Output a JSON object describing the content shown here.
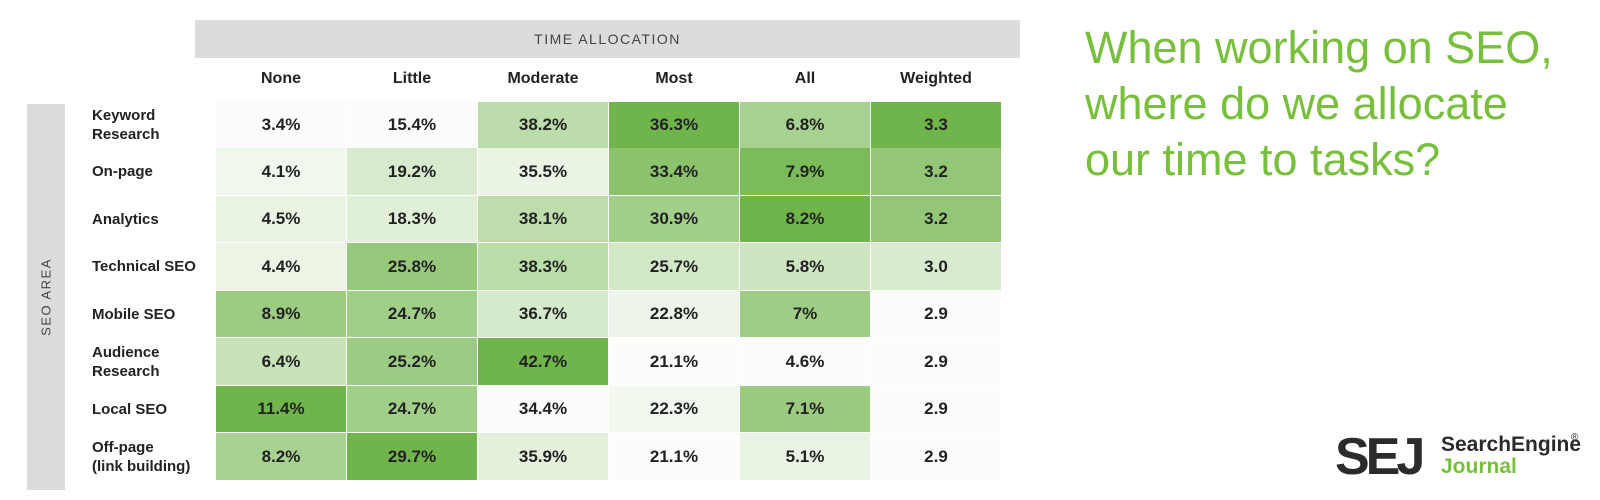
{
  "chart_data": {
    "type": "heatmap",
    "title": "When working on SEO, where do we allocate our time to tasks?",
    "column_axis_label": "TIME ALLOCATION",
    "row_axis_label": "SEO AREA",
    "columns": [
      "None",
      "Little",
      "Moderate",
      "Most",
      "All",
      "Weighted"
    ],
    "rows": [
      {
        "label": "Keyword\nResearch",
        "display": [
          "3.4%",
          "15.4%",
          "38.2%",
          "36.3%",
          "6.8%",
          "3.3"
        ],
        "values": [
          3.4,
          15.4,
          38.2,
          36.3,
          6.8,
          3.3
        ]
      },
      {
        "label": "On-page",
        "display": [
          "4.1%",
          "19.2%",
          "35.5%",
          "33.4%",
          "7.9%",
          "3.2"
        ],
        "values": [
          4.1,
          19.2,
          35.5,
          33.4,
          7.9,
          3.2
        ]
      },
      {
        "label": "Analytics",
        "display": [
          "4.5%",
          "18.3%",
          "38.1%",
          "30.9%",
          "8.2%",
          "3.2"
        ],
        "values": [
          4.5,
          18.3,
          38.1,
          30.9,
          8.2,
          3.2
        ]
      },
      {
        "label": "Technical SEO",
        "display": [
          "4.4%",
          "25.8%",
          "38.3%",
          "25.7%",
          "5.8%",
          "3.0"
        ],
        "values": [
          4.4,
          25.8,
          38.3,
          25.7,
          5.8,
          3.0
        ]
      },
      {
        "label": "Mobile SEO",
        "display": [
          "8.9%",
          "24.7%",
          "36.7%",
          "22.8%",
          "7%",
          "2.9"
        ],
        "values": [
          8.9,
          24.7,
          36.7,
          22.8,
          7,
          2.9
        ]
      },
      {
        "label": "Audience\nResearch",
        "display": [
          "6.4%",
          "25.2%",
          "42.7%",
          "21.1%",
          "4.6%",
          "2.9"
        ],
        "values": [
          6.4,
          25.2,
          42.7,
          21.1,
          4.6,
          2.9
        ]
      },
      {
        "label": "Local SEO",
        "display": [
          "11.4%",
          "24.7%",
          "34.4%",
          "22.3%",
          "7.1%",
          "2.9"
        ],
        "values": [
          11.4,
          24.7,
          34.4,
          22.3,
          7.1,
          2.9
        ]
      },
      {
        "label": "Off-page\n(link building)",
        "display": [
          "8.2%",
          "29.7%",
          "35.9%",
          "21.1%",
          "5.1%",
          "2.9"
        ],
        "values": [
          8.2,
          29.7,
          35.9,
          21.1,
          5.1,
          2.9
        ]
      }
    ]
  },
  "headline": "When working on SEO, where do we allocate our time to tasks?",
  "logo": {
    "mark": "SEJ",
    "line1": "SearchEngine",
    "line2": "Journal",
    "registered": "®"
  },
  "colors": {
    "accent_green": "#78bf3c",
    "logo_dark": "#2b2b2b",
    "logo_green": "#78bf3c",
    "header_gray": "#dcdcdc",
    "heat_low": "#ffffff",
    "heat_high": "#6cb346"
  }
}
